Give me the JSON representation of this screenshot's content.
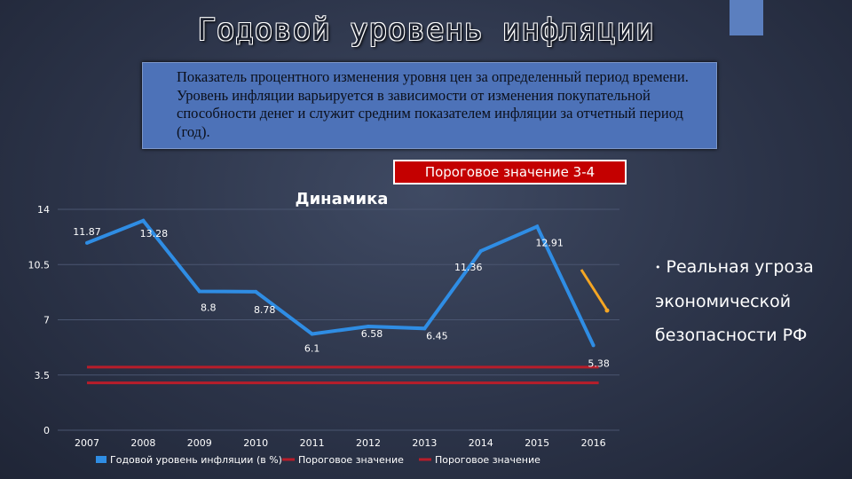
{
  "slide": {
    "title": "Годовой уровень инфляции",
    "definition": "Показатель процентного изменения уровня цен за определенный период времени. Уровень инфляции варьируется в зависимости от изменения покупательной способности денег и служит средним показателем инфляции за отчетный период (год).",
    "threshold_badge": "Пороговое значение 3-4",
    "side_note_bullet": "•",
    "side_note": "Реальная угроза экономической безопасности РФ",
    "colors": {
      "background": "#2c3449",
      "definition_box": "#4d72b8",
      "badge": "#c40000",
      "series_line": "#2f8de4",
      "threshold_line": "#b81d2a",
      "trend_arrow": "#f5a623"
    }
  },
  "chart_data": {
    "type": "line",
    "title": "Динамика",
    "categories": [
      "2007",
      "2008",
      "2009",
      "2010",
      "2011",
      "2012",
      "2013",
      "2014",
      "2015",
      "2016"
    ],
    "ylim": [
      0,
      14
    ],
    "yticks": [
      "0",
      "3.5",
      "7",
      "10.5",
      "14"
    ],
    "grid": false,
    "legend_position": "bottom",
    "series": [
      {
        "name": "Годовой уровень инфляции (в %)",
        "values": [
          11.87,
          13.28,
          8.8,
          8.78,
          6.1,
          6.58,
          6.45,
          11.36,
          12.91,
          5.38
        ],
        "labels": [
          "11.87",
          "13.28",
          "8.8",
          "8.78",
          "6.1",
          "6.58",
          "6.45",
          "11.36",
          "12.91",
          "5.38"
        ],
        "color": "#2f8de4"
      },
      {
        "name": "Пороговое значение",
        "values": [
          4,
          4,
          4,
          4,
          4,
          4,
          4,
          4,
          4,
          4
        ],
        "color": "#b81d2a"
      },
      {
        "name": "Пороговое значение",
        "values": [
          3,
          3,
          3,
          3,
          3,
          3,
          3,
          3,
          3,
          3
        ],
        "color": "#b81d2a"
      }
    ]
  }
}
